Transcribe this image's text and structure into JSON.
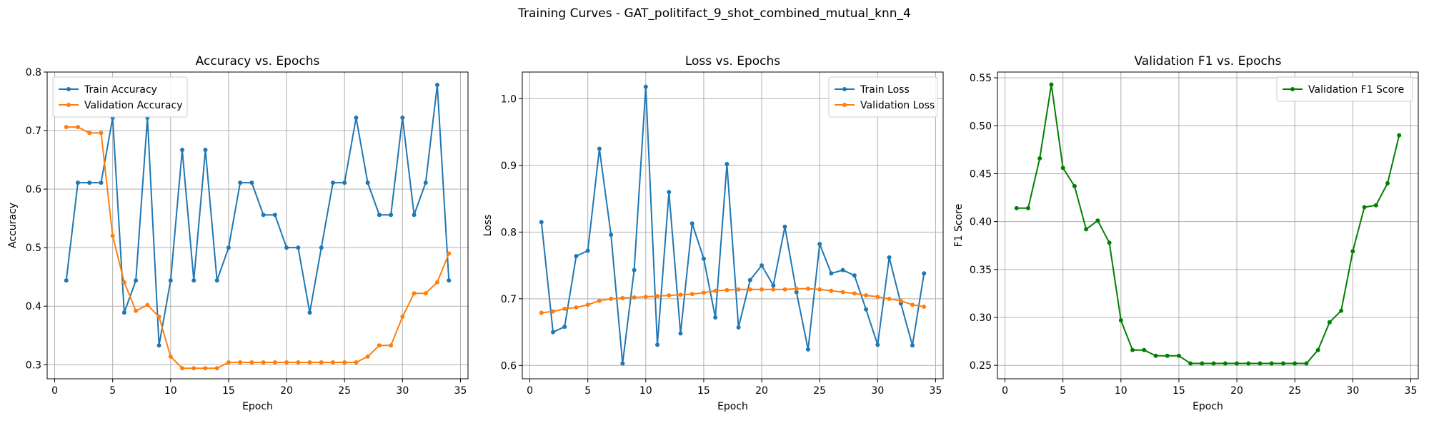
{
  "suptitle": "Training Curves - GAT_politifact_9_shot_combined_mutual_knn_4",
  "colors": {
    "blue": "#1f77b4",
    "orange": "#ff7f0e",
    "green": "#008000",
    "grid": "#b0b0b0"
  },
  "chart_data": [
    {
      "type": "line",
      "title": "Accuracy vs. Epochs",
      "xlabel": "Epoch",
      "ylabel": "Accuracy",
      "xlim": [
        -0.65,
        35.65
      ],
      "ylim": [
        0.276,
        0.8
      ],
      "xticks": [
        0,
        5,
        10,
        15,
        20,
        25,
        30,
        35
      ],
      "yticks": [
        0.3,
        0.4,
        0.5,
        0.6,
        0.7,
        0.8
      ],
      "ytick_labels": [
        "0.3",
        "0.4",
        "0.5",
        "0.6",
        "0.7",
        "0.8"
      ],
      "grid": true,
      "legend": "upper left",
      "x": [
        1,
        2,
        3,
        4,
        5,
        6,
        7,
        8,
        9,
        10,
        11,
        12,
        13,
        14,
        15,
        16,
        17,
        18,
        19,
        20,
        21,
        22,
        23,
        24,
        25,
        26,
        27,
        28,
        29,
        30,
        31,
        32,
        33,
        34
      ],
      "series": [
        {
          "name": "Train Accuracy",
          "color": "#1f77b4",
          "values": [
            0.444,
            0.611,
            0.611,
            0.611,
            0.722,
            0.389,
            0.444,
            0.722,
            0.333,
            0.444,
            0.667,
            0.444,
            0.667,
            0.444,
            0.5,
            0.611,
            0.611,
            0.556,
            0.556,
            0.5,
            0.5,
            0.389,
            0.5,
            0.611,
            0.611,
            0.722,
            0.611,
            0.556,
            0.556,
            0.722,
            0.556,
            0.611,
            0.778,
            0.444
          ]
        },
        {
          "name": "Validation Accuracy",
          "color": "#ff7f0e",
          "values": [
            0.706,
            0.706,
            0.696,
            0.696,
            0.52,
            0.441,
            0.392,
            0.402,
            0.382,
            0.314,
            0.294,
            0.294,
            0.294,
            0.294,
            0.304,
            0.304,
            0.304,
            0.304,
            0.304,
            0.304,
            0.304,
            0.304,
            0.304,
            0.304,
            0.304,
            0.304,
            0.314,
            0.333,
            0.333,
            0.382,
            0.422,
            0.422,
            0.441,
            0.49
          ]
        }
      ]
    },
    {
      "type": "line",
      "title": "Loss vs. Epochs",
      "xlabel": "Epoch",
      "ylabel": "Loss",
      "xlim": [
        -0.65,
        35.65
      ],
      "ylim": [
        0.58,
        1.04
      ],
      "xticks": [
        0,
        5,
        10,
        15,
        20,
        25,
        30,
        35
      ],
      "yticks": [
        0.6,
        0.7,
        0.8,
        0.9,
        1.0
      ],
      "ytick_labels": [
        "0.6",
        "0.7",
        "0.8",
        "0.9",
        "1.0"
      ],
      "grid": true,
      "legend": "upper right",
      "x": [
        1,
        2,
        3,
        4,
        5,
        6,
        7,
        8,
        9,
        10,
        11,
        12,
        13,
        14,
        15,
        16,
        17,
        18,
        19,
        20,
        21,
        22,
        23,
        24,
        25,
        26,
        27,
        28,
        29,
        30,
        31,
        32,
        33,
        34
      ],
      "series": [
        {
          "name": "Train Loss",
          "color": "#1f77b4",
          "values": [
            0.815,
            0.65,
            0.658,
            0.764,
            0.772,
            0.925,
            0.796,
            0.603,
            0.743,
            1.018,
            0.631,
            0.86,
            0.648,
            0.813,
            0.76,
            0.672,
            0.902,
            0.657,
            0.728,
            0.75,
            0.72,
            0.808,
            0.71,
            0.624,
            0.782,
            0.738,
            0.743,
            0.735,
            0.684,
            0.631,
            0.762,
            0.693,
            0.63,
            0.738
          ]
        },
        {
          "name": "Validation Loss",
          "color": "#ff7f0e",
          "values": [
            0.679,
            0.681,
            0.685,
            0.687,
            0.691,
            0.697,
            0.7,
            0.701,
            0.702,
            0.703,
            0.704,
            0.705,
            0.706,
            0.707,
            0.709,
            0.712,
            0.713,
            0.714,
            0.714,
            0.714,
            0.714,
            0.714,
            0.715,
            0.715,
            0.714,
            0.712,
            0.71,
            0.708,
            0.705,
            0.703,
            0.7,
            0.697,
            0.691,
            0.688
          ]
        }
      ]
    },
    {
      "type": "line",
      "title": "Validation F1 vs. Epochs",
      "xlabel": "Epoch",
      "ylabel": "F1 Score",
      "xlim": [
        -0.65,
        35.65
      ],
      "ylim": [
        0.236,
        0.556
      ],
      "xticks": [
        0,
        5,
        10,
        15,
        20,
        25,
        30,
        35
      ],
      "yticks": [
        0.25,
        0.3,
        0.35,
        0.4,
        0.45,
        0.5,
        0.55
      ],
      "ytick_labels": [
        "0.25",
        "0.30",
        "0.35",
        "0.40",
        "0.45",
        "0.50",
        "0.55"
      ],
      "grid": true,
      "legend": "upper right",
      "x": [
        1,
        2,
        3,
        4,
        5,
        6,
        7,
        8,
        9,
        10,
        11,
        12,
        13,
        14,
        15,
        16,
        17,
        18,
        19,
        20,
        21,
        22,
        23,
        24,
        25,
        26,
        27,
        28,
        29,
        30,
        31,
        32,
        33,
        34
      ],
      "series": [
        {
          "name": "Validation F1 Score",
          "color": "#008000",
          "values": [
            0.414,
            0.414,
            0.466,
            0.543,
            0.456,
            0.437,
            0.392,
            0.401,
            0.378,
            0.297,
            0.266,
            0.266,
            0.26,
            0.26,
            0.26,
            0.252,
            0.252,
            0.252,
            0.252,
            0.252,
            0.252,
            0.252,
            0.252,
            0.252,
            0.252,
            0.252,
            0.266,
            0.295,
            0.307,
            0.369,
            0.415,
            0.417,
            0.44,
            0.49
          ]
        }
      ]
    }
  ]
}
